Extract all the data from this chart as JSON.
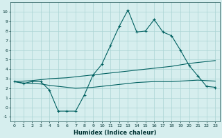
{
  "title": "",
  "xlabel": "Humidex (Indice chaleur)",
  "x": [
    0,
    1,
    2,
    3,
    4,
    5,
    6,
    7,
    8,
    9,
    10,
    11,
    12,
    13,
    14,
    15,
    16,
    17,
    18,
    19,
    20,
    21,
    22,
    23
  ],
  "line1": [
    2.7,
    2.5,
    2.7,
    2.7,
    1.8,
    -0.4,
    -0.4,
    -0.4,
    1.3,
    3.4,
    4.5,
    6.5,
    8.5,
    10.2,
    7.9,
    8.0,
    9.2,
    7.9,
    7.5,
    6.0,
    4.4,
    3.3,
    2.2,
    2.1
  ],
  "line2": [
    2.7,
    2.75,
    2.8,
    2.9,
    3.0,
    3.05,
    3.1,
    3.2,
    3.3,
    3.4,
    3.5,
    3.6,
    3.7,
    3.8,
    3.9,
    4.0,
    4.1,
    4.2,
    4.3,
    4.45,
    4.6,
    4.7,
    4.8,
    4.9
  ],
  "line3": [
    2.7,
    2.55,
    2.5,
    2.45,
    2.3,
    2.2,
    2.1,
    2.0,
    2.05,
    2.1,
    2.2,
    2.3,
    2.4,
    2.5,
    2.6,
    2.65,
    2.7,
    2.7,
    2.7,
    2.75,
    2.8,
    2.85,
    2.8,
    2.75
  ],
  "bg_color": "#d6eeee",
  "grid_color": "#aad4d4",
  "line_color": "#006060",
  "xlim_min": -0.5,
  "xlim_max": 23.5,
  "ylim_min": -1.5,
  "ylim_max": 11.0,
  "yticks": [
    -1,
    0,
    1,
    2,
    3,
    4,
    5,
    6,
    7,
    8,
    9,
    10
  ],
  "xticks": [
    0,
    1,
    2,
    3,
    4,
    5,
    6,
    7,
    8,
    9,
    10,
    11,
    12,
    13,
    14,
    15,
    16,
    17,
    18,
    19,
    20,
    21,
    22,
    23
  ],
  "tick_fontsize": 4.5,
  "xlabel_fontsize": 6.0
}
